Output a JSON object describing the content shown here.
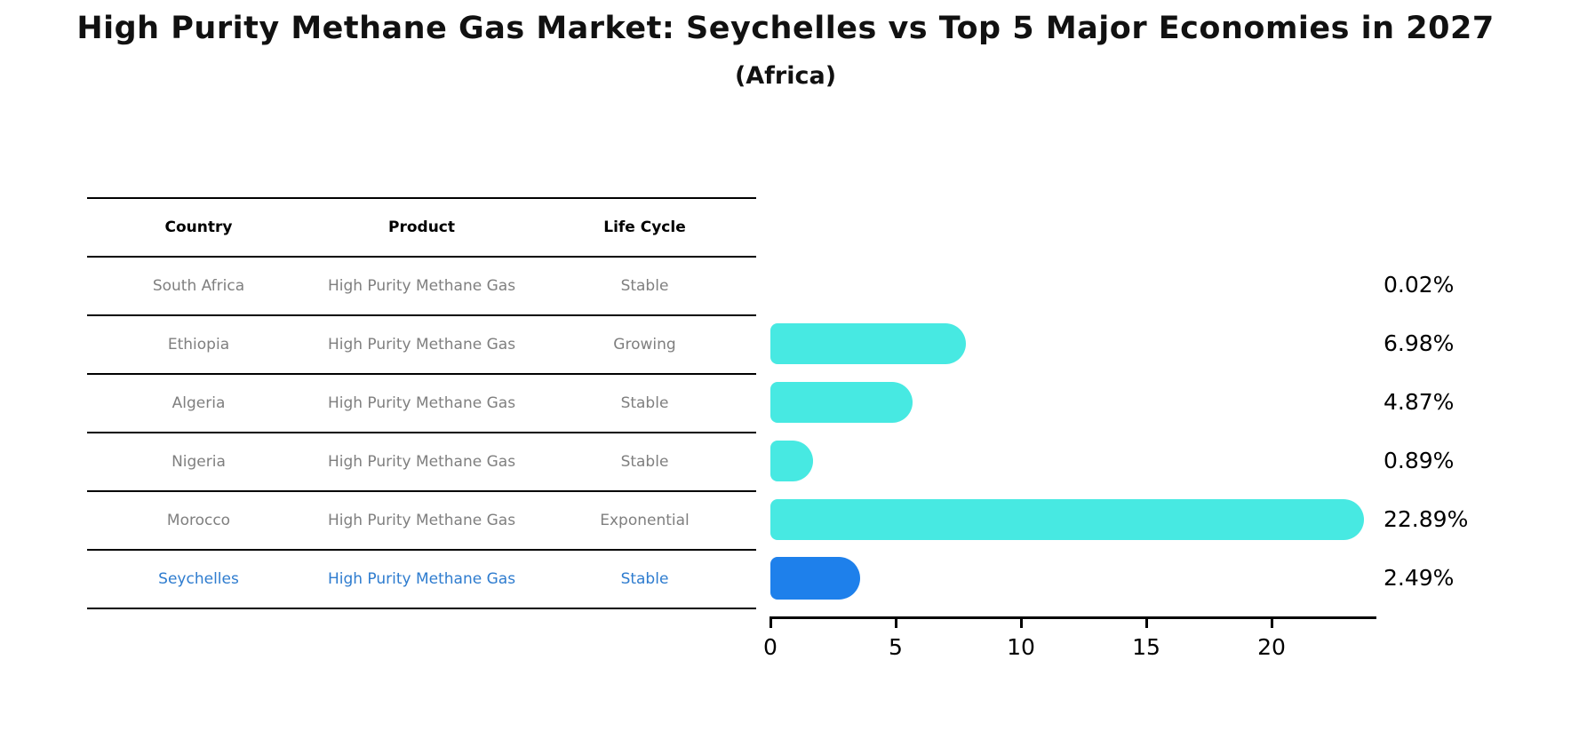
{
  "title": "High Purity Methane Gas Market: Seychelles vs Top 5 Major Economies in 2027",
  "subtitle": "(Africa)",
  "table": {
    "headers": [
      "Country",
      "Product",
      "Life Cycle"
    ],
    "rows": [
      {
        "country": "South Africa",
        "product": "High Purity Methane Gas",
        "life_cycle": "Stable",
        "highlight": false
      },
      {
        "country": "Ethiopia",
        "product": "High Purity Methane Gas",
        "life_cycle": "Growing",
        "highlight": false
      },
      {
        "country": "Algeria",
        "product": "High Purity Methane Gas",
        "life_cycle": "Stable",
        "highlight": false
      },
      {
        "country": "Nigeria",
        "product": "High Purity Methane Gas",
        "life_cycle": "Stable",
        "highlight": false
      },
      {
        "country": "Morocco",
        "product": "High Purity Methane Gas",
        "life_cycle": "Exponential",
        "highlight": false
      },
      {
        "country": "Seychelles",
        "product": "High Purity Methane Gas",
        "life_cycle": "Stable",
        "highlight": true
      }
    ]
  },
  "chart_data": {
    "type": "bar",
    "orientation": "horizontal",
    "title": "High Purity Methane Gas Market: Seychelles vs Top 5 Major Economies in 2027",
    "subtitle": "(Africa)",
    "categories": [
      "South Africa",
      "Ethiopia",
      "Algeria",
      "Nigeria",
      "Morocco",
      "Seychelles"
    ],
    "values": [
      0.02,
      6.98,
      4.87,
      0.89,
      22.89,
      2.49
    ],
    "value_labels": [
      "0.02%",
      "6.98%",
      "4.87%",
      "0.89%",
      "22.89%",
      "2.49%"
    ],
    "xticks": [
      0,
      5,
      10,
      15,
      20
    ],
    "xlim": [
      0,
      24
    ],
    "grid": false,
    "legend": false,
    "bar_color": "#47e9e2",
    "highlight_color": "#1e80eb",
    "highlight_index": 5
  },
  "colors": {
    "bar_cyan": "#47e9e2",
    "bar_blue": "#1e80eb",
    "link_text_blue": "#2e7ccf",
    "table_text_gray": "#7f7f7f",
    "axis_black": "#000000"
  }
}
